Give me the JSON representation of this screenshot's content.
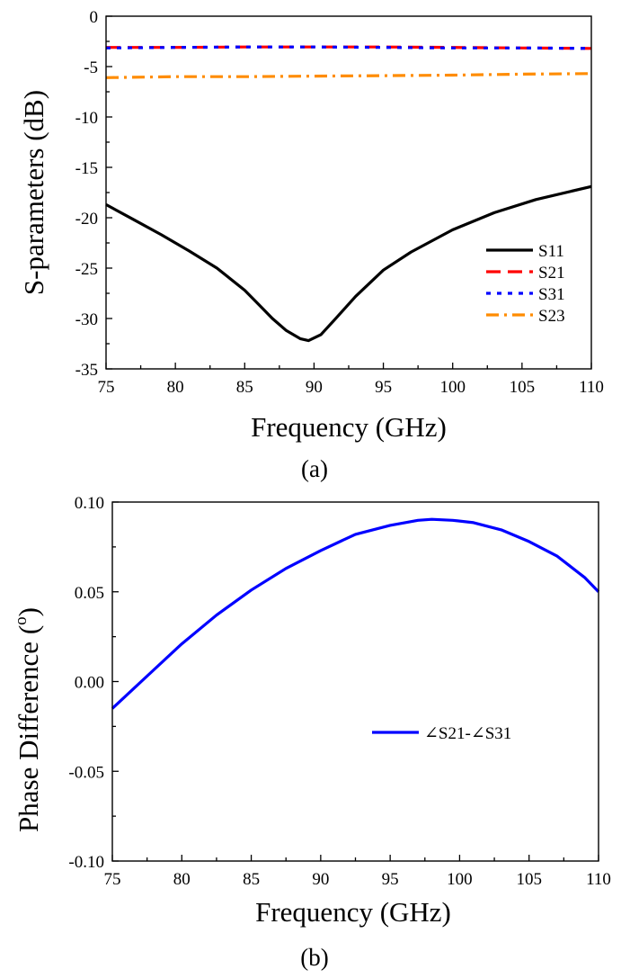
{
  "chart_data": [
    {
      "type": "line",
      "panel_label": "(a)",
      "title": "",
      "xlabel": "Frequency (GHz)",
      "ylabel": "S-parameters (dB)",
      "xlim": [
        75,
        110
      ],
      "ylim": [
        -35,
        0
      ],
      "xticks": [
        75,
        80,
        85,
        90,
        95,
        100,
        105,
        110
      ],
      "yticks": [
        0,
        -5,
        -10,
        -15,
        -20,
        -25,
        -30,
        -35
      ],
      "xtick_labels": [
        "75",
        "80",
        "85",
        "90",
        "95",
        "100",
        "105",
        "110"
      ],
      "ytick_labels": [
        "0",
        "-5",
        "-10",
        "-15",
        "-20",
        "-25",
        "-30",
        "-35"
      ],
      "legend_position": "bottom-right",
      "series": [
        {
          "name": "S11",
          "color": "#000000",
          "dash": "solid",
          "x": [
            75,
            77,
            79,
            81,
            83,
            85,
            86,
            87,
            88,
            89,
            89.6,
            90.5,
            91.5,
            93,
            95,
            97,
            100,
            103,
            106,
            110
          ],
          "y": [
            -18.7,
            -20.2,
            -21.7,
            -23.3,
            -25.0,
            -27.2,
            -28.6,
            -30.0,
            -31.2,
            -32.0,
            -32.2,
            -31.6,
            -30.1,
            -27.8,
            -25.2,
            -23.4,
            -21.2,
            -19.5,
            -18.2,
            -16.9
          ]
        },
        {
          "name": "S21",
          "color": "#ff0000",
          "dash": "dashed",
          "x": [
            75,
            80,
            85,
            90,
            95,
            100,
            105,
            110
          ],
          "y": [
            -3.1,
            -3.1,
            -3.05,
            -3.05,
            -3.05,
            -3.1,
            -3.15,
            -3.2
          ]
        },
        {
          "name": "S31",
          "color": "#0000ff",
          "dash": "dotted",
          "x": [
            75,
            80,
            85,
            90,
            95,
            100,
            105,
            110
          ],
          "y": [
            -3.15,
            -3.1,
            -3.05,
            -3.05,
            -3.1,
            -3.15,
            -3.15,
            -3.2
          ]
        },
        {
          "name": "S23",
          "color": "#ff8c00",
          "dash": "dashdot",
          "x": [
            75,
            80,
            85,
            90,
            95,
            100,
            105,
            110
          ],
          "y": [
            -6.1,
            -6.0,
            -6.0,
            -5.95,
            -5.9,
            -5.85,
            -5.75,
            -5.7
          ]
        }
      ]
    },
    {
      "type": "line",
      "panel_label": "(b)",
      "title": "",
      "xlabel": "Frequency (GHz)",
      "ylabel": "Phase Difference (",
      "ylabel_sup": "o",
      "ylabel_end": ")",
      "xlim": [
        75,
        110
      ],
      "ylim": [
        -0.1,
        0.1
      ],
      "xticks": [
        75,
        80,
        85,
        90,
        95,
        100,
        105,
        110
      ],
      "yticks": [
        0.1,
        0.05,
        0.0,
        -0.05,
        -0.1
      ],
      "xtick_labels": [
        "75",
        "80",
        "85",
        "90",
        "95",
        "100",
        "105",
        "110"
      ],
      "ytick_labels": [
        "0.10",
        "0.05",
        "0.00",
        "-0.05",
        "-0.10"
      ],
      "legend_position": "center-right",
      "series": [
        {
          "name": "∠S21-∠S31",
          "color": "#0000ff",
          "dash": "solid",
          "x": [
            75,
            77.5,
            80,
            82.5,
            85,
            87.5,
            90,
            92.5,
            95,
            97,
            98,
            99.5,
            101,
            103,
            105,
            107,
            109,
            110
          ],
          "y": [
            -0.015,
            0.003,
            0.021,
            0.037,
            0.051,
            0.063,
            0.073,
            0.082,
            0.087,
            0.0898,
            0.0904,
            0.0898,
            0.0885,
            0.0845,
            0.078,
            0.07,
            0.058,
            0.05
          ]
        }
      ]
    }
  ]
}
